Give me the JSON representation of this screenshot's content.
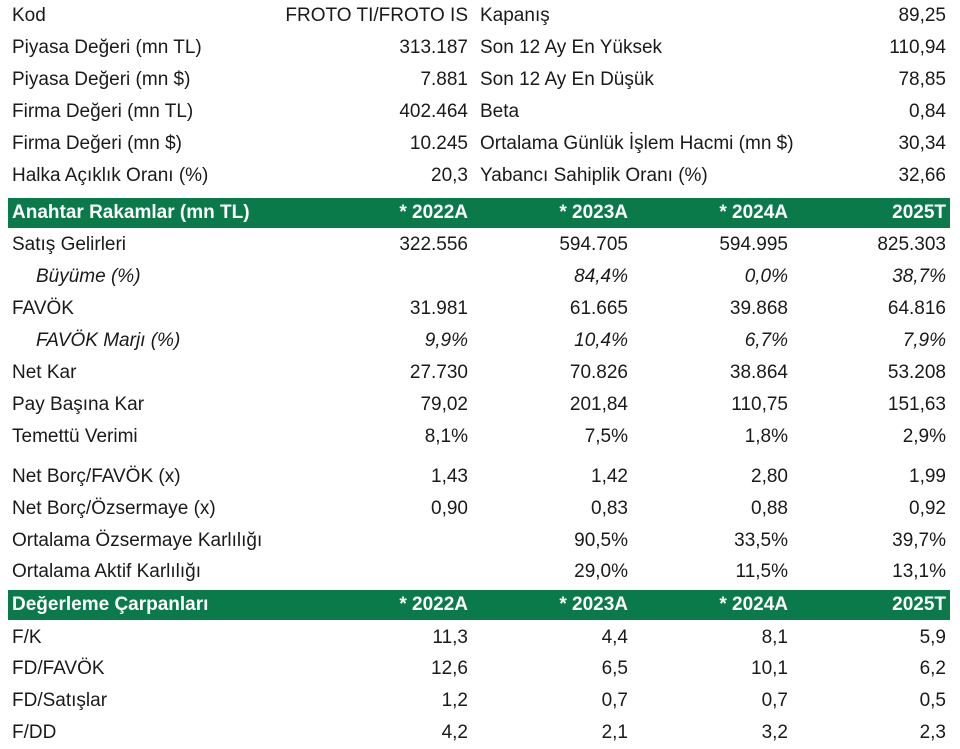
{
  "info": [
    {
      "l1": "Kod",
      "v1": "FROTO TI/FROTO IS",
      "l2": "Kapanış",
      "v2": "89,25"
    },
    {
      "l1": "Piyasa Değeri (mn TL)",
      "v1": "313.187",
      "l2": "Son 12 Ay En Yüksek",
      "v2": "110,94"
    },
    {
      "l1": "Piyasa Değeri (mn $)",
      "v1": "7.881",
      "l2": "Son 12 Ay En Düşük",
      "v2": "78,85"
    },
    {
      "l1": "Firma Değeri (mn TL)",
      "v1": "402.464",
      "l2": "Beta",
      "v2": "0,84"
    },
    {
      "l1": "Firma Değeri (mn $)",
      "v1": "10.245",
      "l2": "Ortalama Günlük İşlem Hacmi (mn $)",
      "v2": "30,34"
    },
    {
      "l1": "Halka Açıklık Oranı (%)",
      "v1": "20,3",
      "l2": "Yabancı Sahiplik Oranı (%)",
      "v2": "32,66"
    }
  ],
  "key_figures": {
    "header": [
      "Anahtar Rakamlar (mn TL)",
      "* 2022A",
      "* 2023A",
      "* 2024A",
      "2025T"
    ],
    "rows": [
      {
        "label": "Satış Gelirleri",
        "v": [
          "322.556",
          "594.705",
          "594.995",
          "825.303"
        ]
      },
      {
        "label": "Büyüme (%)",
        "v": [
          "",
          "84,4%",
          "0,0%",
          "38,7%"
        ]
      },
      {
        "label": "FAVÖK",
        "v": [
          "31.981",
          "61.665",
          "39.868",
          "64.816"
        ]
      },
      {
        "label": "FAVÖK Marjı (%)",
        "v": [
          "9,9%",
          "10,4%",
          "6,7%",
          "7,9%"
        ]
      },
      {
        "label": "Net Kar",
        "v": [
          "27.730",
          "70.826",
          "38.864",
          "53.208"
        ]
      },
      {
        "label": "Pay Başına Kar",
        "v": [
          "79,02",
          "201,84",
          "110,75",
          "151,63"
        ]
      },
      {
        "label": "Temettü Verimi",
        "v": [
          "8,1%",
          "7,5%",
          "1,8%",
          "2,9%"
        ]
      },
      {
        "label": "Net Borç/FAVÖK (x)",
        "v": [
          "1,43",
          "1,42",
          "2,80",
          "1,99"
        ]
      },
      {
        "label": "Net Borç/Özsermaye (x)",
        "v": [
          "0,90",
          "0,83",
          "0,88",
          "0,92"
        ]
      },
      {
        "label": "Ortalama Özsermaye Karlılığı",
        "v": [
          "",
          "90,5%",
          "33,5%",
          "39,7%"
        ]
      },
      {
        "label": "Ortalama Aktif Karlılığı",
        "v": [
          "",
          "29,0%",
          "11,5%",
          "13,1%"
        ]
      }
    ]
  },
  "valuation": {
    "header": [
      "Değerleme Çarpanları",
      "* 2022A",
      "* 2023A",
      "* 2024A",
      "2025T"
    ],
    "rows": [
      {
        "label": "F/K",
        "v": [
          "11,3",
          "4,4",
          "8,1",
          "5,9"
        ]
      },
      {
        "label": "FD/FAVÖK",
        "v": [
          "12,6",
          "6,5",
          "10,1",
          "6,2"
        ]
      },
      {
        "label": "FD/Satışlar",
        "v": [
          "1,2",
          "0,7",
          "0,7",
          "0,5"
        ]
      },
      {
        "label": "F/DD",
        "v": [
          "4,2",
          "2,1",
          "3,2",
          "2,3"
        ]
      }
    ]
  },
  "colors": {
    "header_bg": "#0b7a4b",
    "header_text": "#ffffff",
    "text": "#1a1a1a"
  }
}
